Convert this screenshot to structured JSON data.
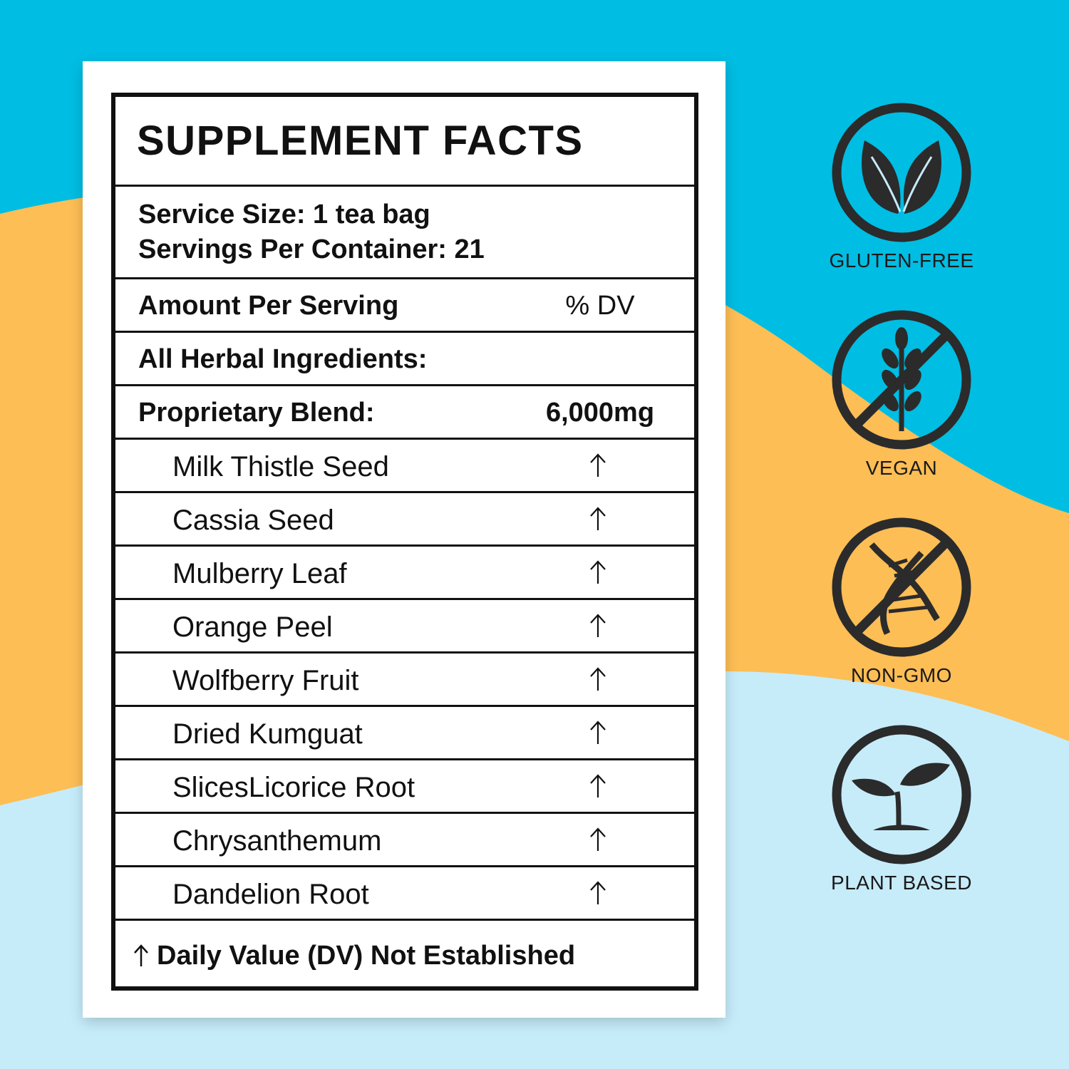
{
  "colors": {
    "sky_blue": "#00BDE3",
    "orange": "#FDBE55",
    "light_blue": "#C6ECFA",
    "ink": "#111111"
  },
  "panel": {
    "title": "SUPPLEMENT FACTS",
    "serving_size": "Service Size: 1 tea bag",
    "servings_per_container": "Servings Per Container: 21",
    "amount_header": "Amount Per Serving",
    "dv_header": "% DV",
    "herbal_header": "All Herbal Ingredients:",
    "blend_label": "Proprietary Blend:",
    "blend_amount": "6,000mg",
    "ingredients": [
      "Milk Thistle Seed",
      "Cassia Seed",
      "Mulberry Leaf",
      "Orange Peel",
      "Wolfberry Fruit",
      "Dried Kumguat",
      "SlicesLicorice Root",
      "Chrysanthemum",
      "Dandelion Root"
    ],
    "footnote": "Daily Value (DV) Not Established"
  },
  "badges": [
    {
      "icon": "leaves-icon",
      "label": "GLUTEN-FREE"
    },
    {
      "icon": "no-wheat-icon",
      "label": "VEGAN"
    },
    {
      "icon": "no-dna-icon",
      "label": "NON-GMO"
    },
    {
      "icon": "sprout-icon",
      "label": "PLANT BASED"
    }
  ]
}
